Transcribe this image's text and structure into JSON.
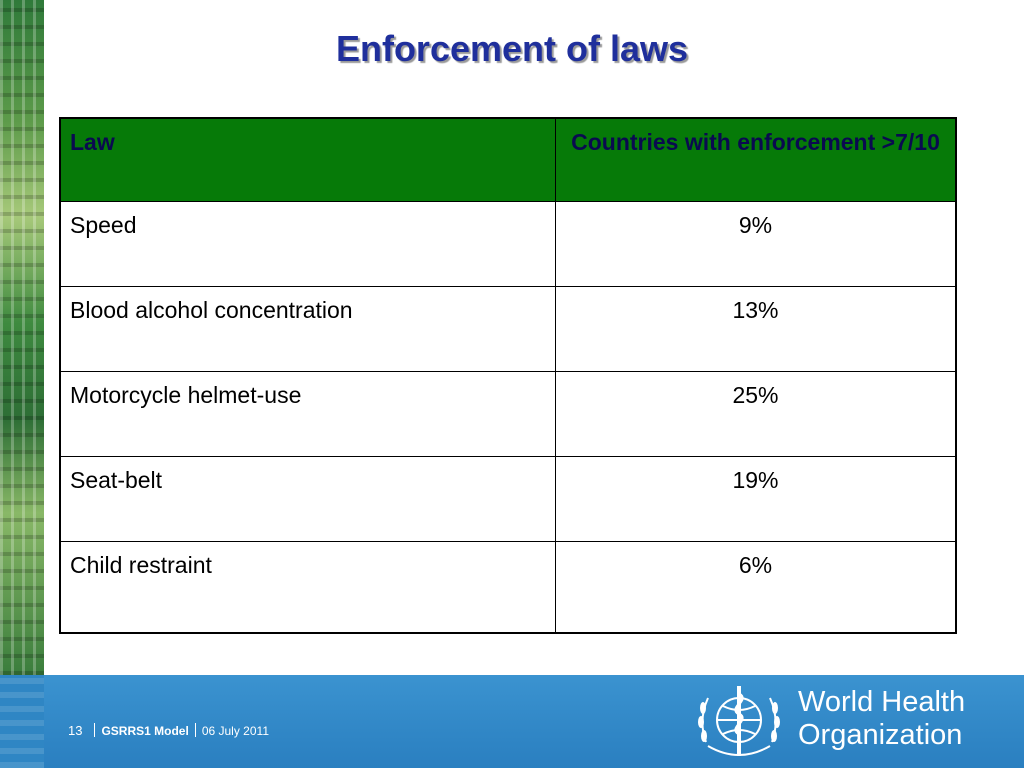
{
  "slide": {
    "title": "Enforcement of laws"
  },
  "table": {
    "headers": [
      "Law",
      "Countries with enforcement >7/10"
    ],
    "rows": [
      {
        "law": "Speed",
        "value": "9%"
      },
      {
        "law": "Blood alcohol concentration",
        "value": "13%"
      },
      {
        "law": "Motorcycle helmet-use",
        "value": "25%"
      },
      {
        "law": "Seat-belt",
        "value": "19%"
      },
      {
        "law": "Child restraint",
        "value": "6%"
      }
    ]
  },
  "footer": {
    "slide_number": "13",
    "model": "GSRRS1 Model",
    "date": "06 July 2011",
    "org_line1": "World Health",
    "org_line2": "Organization",
    "emblem_icon": "who-emblem-icon"
  },
  "colors": {
    "title": "#1f2f9c",
    "header_bg": "#067a08",
    "footer_bg": "#3b93d0"
  }
}
